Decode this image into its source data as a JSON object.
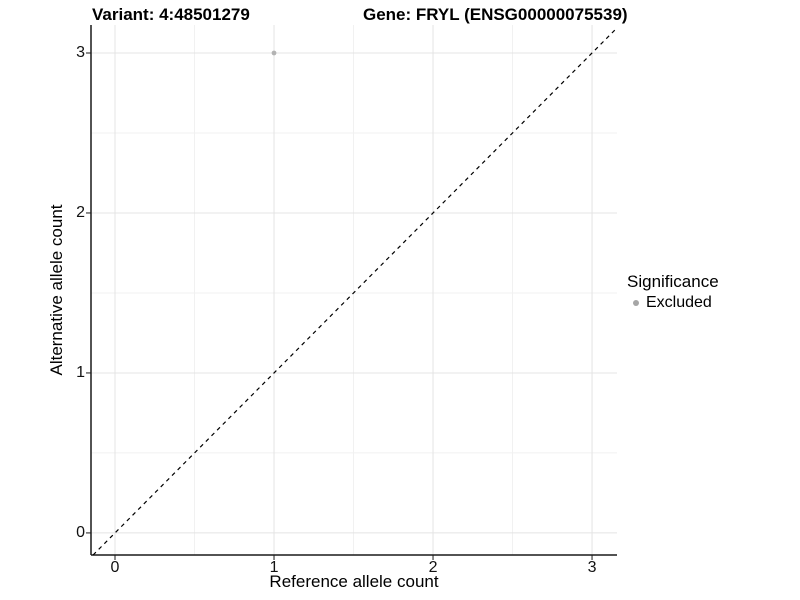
{
  "header": {
    "variant_title": "Variant: 4:48501279",
    "gene_title": "Gene: FRYL (ENSG00000075539)"
  },
  "chart_data": {
    "type": "scatter",
    "title_left": "Variant: 4:48501279",
    "title_right": "Gene: FRYL (ENSG00000075539)",
    "xlabel": "Reference allele count",
    "ylabel": "Alternative allele count",
    "xlim": [
      -0.151,
      3.157
    ],
    "ylim": [
      -0.138,
      3.175
    ],
    "x_ticks": [
      0,
      1,
      2,
      3
    ],
    "y_ticks": [
      0,
      1,
      2,
      3
    ],
    "x_minor_gridlines": [
      0.5,
      1.5,
      2.5
    ],
    "y_minor_gridlines": [
      0.5,
      1.5,
      2.5
    ],
    "grid": "major+minor",
    "reference_line": {
      "type": "identity",
      "slope": 1,
      "intercept": 0,
      "linetype": "dashed",
      "color": "#000000"
    },
    "series": [
      {
        "name": "Excluded",
        "color": "#b3b3b3",
        "points": [
          {
            "x": 1,
            "y": 3
          }
        ]
      }
    ],
    "legend": {
      "title": "Significance",
      "position": "right",
      "entries": [
        {
          "label": "Excluded",
          "color": "#a6a6a6",
          "marker": "circle"
        }
      ]
    },
    "colors": {
      "grid_major": "#e4e4e4",
      "grid_minor": "#f1f1f1",
      "axis_line": "#1a1a1a",
      "tick_mark": "#1a1a1a"
    }
  }
}
